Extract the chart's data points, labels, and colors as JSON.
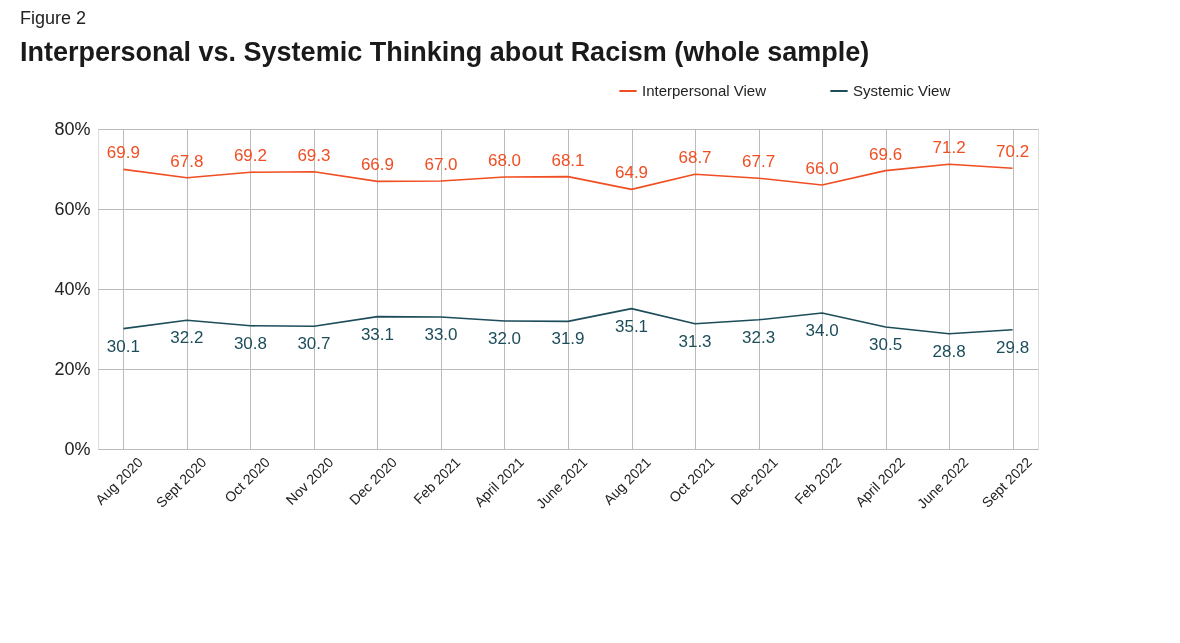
{
  "chart_data": {
    "type": "line",
    "title": "Interpersonal vs. Systemic Thinking about Racism (whole sample)",
    "annotations": [
      "Figure 2"
    ],
    "categories": [
      "Aug 2020",
      "Sept 2020",
      "Oct 2020",
      "Nov 2020",
      "Dec 2020",
      "Feb 2021",
      "April 2021",
      "June 2021",
      "Aug 2021",
      "Oct 2021",
      "Dec 2021",
      "Feb 2022",
      "April 2022",
      "June 2022",
      "Sept 2022"
    ],
    "series": [
      {
        "name": "Interpersonal View",
        "color": "#f04e23",
        "values": [
          69.9,
          67.8,
          69.2,
          69.3,
          66.9,
          67.0,
          68.0,
          68.1,
          64.9,
          68.7,
          67.7,
          66.0,
          69.6,
          71.2,
          70.2
        ],
        "value_labels": [
          "69.9",
          "67.8",
          "69.2",
          "69.3",
          "66.9",
          "67.0",
          "68.0",
          "68.1",
          "64.9",
          "68.7",
          "67.7",
          "66.0",
          "69.6",
          "71.2",
          "70.2"
        ]
      },
      {
        "name": "Systemic View",
        "color": "#1d4d5b",
        "values": [
          30.1,
          32.2,
          30.8,
          30.7,
          33.1,
          33.0,
          32.0,
          31.9,
          35.1,
          31.3,
          32.3,
          34.0,
          30.5,
          28.8,
          29.8
        ],
        "value_labels": [
          "30.1",
          "32.2",
          "30.8",
          "30.7",
          "33.1",
          "33.0",
          "32.0",
          "31.9",
          "35.1",
          "31.3",
          "32.3",
          "34.0",
          "30.5",
          "28.8",
          "29.8"
        ]
      }
    ],
    "ylim": [
      0,
      80
    ],
    "yticks": [
      {
        "value": 0,
        "label": "0%"
      },
      {
        "value": 20,
        "label": "20%"
      },
      {
        "value": 40,
        "label": "40%"
      },
      {
        "value": 60,
        "label": "60%"
      },
      {
        "value": 80,
        "label": "80%"
      }
    ],
    "grid": true,
    "legend": "top right",
    "marker": "none",
    "line_style": "solid"
  }
}
